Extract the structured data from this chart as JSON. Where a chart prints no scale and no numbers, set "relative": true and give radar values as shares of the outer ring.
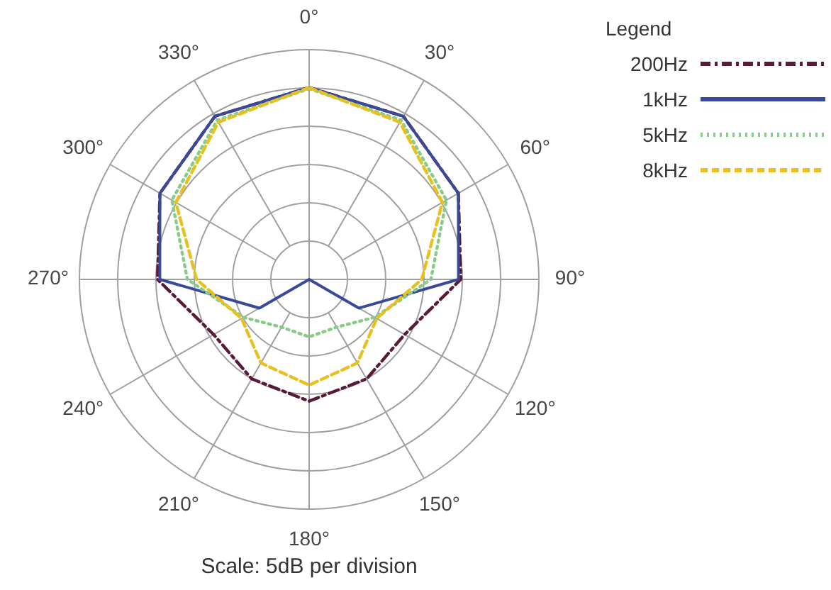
{
  "chart_data": {
    "type": "radar",
    "relative": true,
    "grid": true,
    "legend": "top right",
    "legend_title": "Legend",
    "annotations": [
      "Scale: 5dB per division"
    ],
    "categories": [
      "0°",
      "30°",
      "60°",
      "90°",
      "120°",
      "150°",
      "180°",
      "210°",
      "240°",
      "270°",
      "300°",
      "330°"
    ],
    "series": [
      {
        "name": "200Hz",
        "color": "#5a1a3a",
        "line_style": "dashdot",
        "values": [
          0.835,
          0.82,
          0.75,
          0.66,
          0.48,
          0.5,
          0.53,
          0.5,
          0.48,
          0.66,
          0.75,
          0.82
        ]
      },
      {
        "name": "1kHz",
        "color": "#3a4a9a",
        "line_style": "solid",
        "values": [
          0.835,
          0.82,
          0.75,
          0.65,
          0.25,
          0,
          0,
          0,
          0.25,
          0.65,
          0.75,
          0.82
        ]
      },
      {
        "name": "5kHz",
        "color": "#88cc88",
        "line_style": "dotted",
        "values": [
          0.83,
          0.8,
          0.69,
          0.53,
          0.33,
          0.24,
          0.25,
          0.24,
          0.33,
          0.53,
          0.69,
          0.8
        ]
      },
      {
        "name": "8kHz",
        "color": "#e8c020",
        "line_style": "dashed",
        "values": [
          0.835,
          0.79,
          0.67,
          0.49,
          0.34,
          0.42,
          0.46,
          0.42,
          0.34,
          0.49,
          0.67,
          0.79
        ]
      }
    ]
  }
}
